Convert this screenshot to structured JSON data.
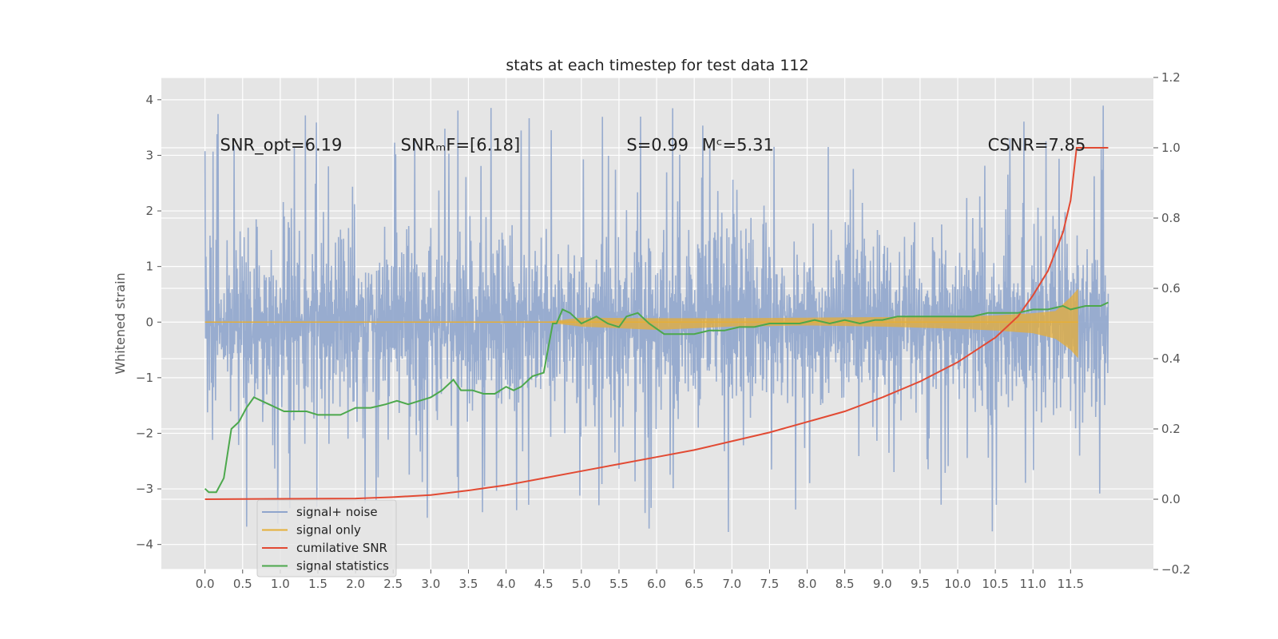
{
  "chart_data": {
    "type": "line",
    "title": "stats at each timestep for test data 112",
    "ylabel": "Whitened strain",
    "xlim": [
      -0.58,
      12.6
    ],
    "ylim_left": [
      -4.45,
      4.4
    ],
    "ylim_right": [
      -0.2,
      1.2
    ],
    "x_ticks": [
      0.0,
      0.5,
      1.0,
      1.5,
      2.0,
      2.5,
      3.0,
      3.5,
      4.0,
      4.5,
      5.0,
      5.5,
      6.0,
      6.5,
      7.0,
      7.5,
      8.0,
      8.5,
      9.0,
      9.5,
      10.0,
      10.5,
      11.0,
      11.5
    ],
    "x_tick_labels": [
      "0.0",
      "0.5",
      "1.0",
      "1.5",
      "2.0",
      "2.5",
      "3.0",
      "3.5",
      "4.0",
      "4.5",
      "5.0",
      "5.5",
      "6.0",
      "6.5",
      "7.0",
      "7.5",
      "8.0",
      "8.5",
      "9.0",
      "9.5",
      "10.0",
      "10.5",
      "11.0",
      "11.5"
    ],
    "y_ticks_left": [
      -4,
      -3,
      -2,
      -1,
      0,
      1,
      2,
      3,
      4
    ],
    "y_tick_labels_left": [
      "−4",
      "−3",
      "−2",
      "−1",
      "0",
      "1",
      "2",
      "3",
      "4"
    ],
    "y_ticks_right": [
      -0.2,
      0.0,
      0.2,
      0.4,
      0.6,
      0.8,
      1.0,
      1.2
    ],
    "y_tick_labels_right": [
      "−0.2",
      "0.0",
      "0.2",
      "0.4",
      "0.6",
      "0.8",
      "1.0",
      "1.2"
    ],
    "grid": true,
    "legend_position": "bottom-left",
    "annotations": [
      {
        "x": 0.2,
        "y": 3.2,
        "text": "SNR_opt=6.19"
      },
      {
        "x": 2.6,
        "y": 3.2,
        "text": "SNRₘF=[6.18]"
      },
      {
        "x": 5.6,
        "y": 3.2,
        "text": "S=0.99"
      },
      {
        "x": 6.6,
        "y": 3.2,
        "text": "Mᶜ=5.31"
      },
      {
        "x": 10.4,
        "y": 3.2,
        "text": "CSNR=7.85"
      }
    ],
    "series": [
      {
        "name": "signal+ noise",
        "color": "#8fa5cc",
        "axis": "left",
        "x_range": [
          0.0,
          12.0
        ],
        "amplitude": 2.2,
        "note_values": "dense noise trace, roughly between -4.1 and 4.0"
      },
      {
        "name": "signal only",
        "color": "#e5ae38",
        "axis": "left",
        "envelope": {
          "x": [
            0.0,
            4.5,
            5.0,
            6.0,
            7.0,
            8.0,
            9.0,
            10.0,
            10.5,
            11.0,
            11.3,
            11.5,
            11.6
          ],
          "upper": [
            0.0,
            0.0,
            0.08,
            0.07,
            0.07,
            0.08,
            0.09,
            0.1,
            0.12,
            0.16,
            0.2,
            0.45,
            0.6
          ],
          "lower": [
            0.0,
            0.0,
            -0.08,
            -0.14,
            -0.08,
            -0.06,
            -0.08,
            -0.12,
            -0.15,
            -0.2,
            -0.3,
            -0.5,
            -0.65
          ]
        }
      },
      {
        "name": "cumilative SNR",
        "color": "#e24a33",
        "axis": "right",
        "x": [
          0.0,
          1.0,
          2.0,
          2.5,
          3.0,
          3.5,
          4.0,
          4.5,
          5.0,
          5.5,
          6.0,
          6.5,
          7.0,
          7.5,
          8.0,
          8.5,
          9.0,
          9.5,
          10.0,
          10.5,
          10.8,
          11.0,
          11.2,
          11.4,
          11.5,
          11.58,
          12.0
        ],
        "y": [
          0.0,
          0.001,
          0.002,
          0.006,
          0.012,
          0.025,
          0.04,
          0.06,
          0.08,
          0.1,
          0.12,
          0.14,
          0.165,
          0.19,
          0.22,
          0.25,
          0.29,
          0.335,
          0.39,
          0.46,
          0.52,
          0.58,
          0.65,
          0.76,
          0.85,
          1.0,
          1.0
        ]
      },
      {
        "name": "signal statistics",
        "color": "#4ca84c",
        "axis": "right",
        "x": [
          0.0,
          0.05,
          0.15,
          0.25,
          0.35,
          0.45,
          0.55,
          0.65,
          0.75,
          0.85,
          0.95,
          1.05,
          1.2,
          1.35,
          1.5,
          1.65,
          1.8,
          1.9,
          2.0,
          2.2,
          2.4,
          2.55,
          2.7,
          2.85,
          3.0,
          3.15,
          3.3,
          3.4,
          3.55,
          3.7,
          3.85,
          4.0,
          4.1,
          4.2,
          4.35,
          4.5,
          4.62,
          4.67,
          4.75,
          4.85,
          5.0,
          5.1,
          5.2,
          5.35,
          5.5,
          5.6,
          5.75,
          5.9,
          6.1,
          6.3,
          6.5,
          6.7,
          6.9,
          7.1,
          7.3,
          7.5,
          7.7,
          7.9,
          8.1,
          8.3,
          8.5,
          8.7,
          8.9,
          9.0,
          9.2,
          9.4,
          9.6,
          9.8,
          10.0,
          10.2,
          10.4,
          10.6,
          10.8,
          11.0,
          11.2,
          11.4,
          11.5,
          11.7,
          11.9,
          12.0
        ],
        "y": [
          0.03,
          0.02,
          0.02,
          0.06,
          0.2,
          0.22,
          0.26,
          0.29,
          0.28,
          0.27,
          0.26,
          0.25,
          0.25,
          0.25,
          0.24,
          0.24,
          0.24,
          0.25,
          0.26,
          0.26,
          0.27,
          0.28,
          0.27,
          0.28,
          0.29,
          0.31,
          0.34,
          0.31,
          0.31,
          0.3,
          0.3,
          0.32,
          0.31,
          0.32,
          0.35,
          0.36,
          0.5,
          0.5,
          0.54,
          0.53,
          0.5,
          0.51,
          0.52,
          0.5,
          0.49,
          0.52,
          0.53,
          0.5,
          0.47,
          0.47,
          0.47,
          0.48,
          0.48,
          0.49,
          0.49,
          0.5,
          0.5,
          0.5,
          0.51,
          0.5,
          0.51,
          0.5,
          0.51,
          0.51,
          0.52,
          0.52,
          0.52,
          0.52,
          0.52,
          0.52,
          0.53,
          0.53,
          0.53,
          0.54,
          0.54,
          0.55,
          0.54,
          0.55,
          0.55,
          0.56
        ]
      }
    ]
  }
}
